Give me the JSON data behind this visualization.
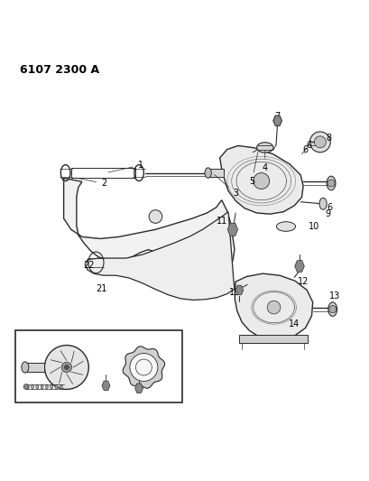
{
  "title": "6107 2300 A",
  "bg_color": "#ffffff",
  "line_color": "#2a2a2a",
  "figsize": [
    4.1,
    5.33
  ],
  "dpi": 100
}
